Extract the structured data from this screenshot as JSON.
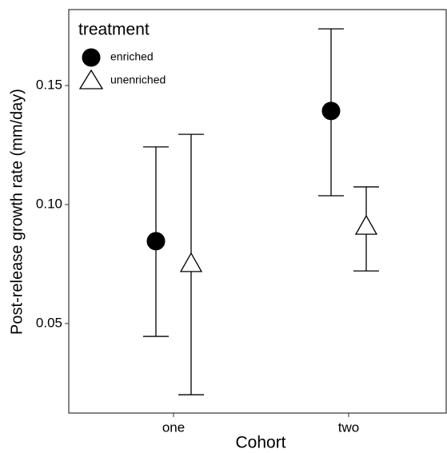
{
  "chart_data": {
    "type": "errorbar",
    "x_label": "Cohort",
    "y_label": "Post-release growth rate (mm/day)",
    "categories": [
      "one",
      "two"
    ],
    "legend_title": "treatment",
    "legend": "top-left",
    "series": [
      {
        "name": "enriched",
        "marker": "circle",
        "color": "#000000",
        "values": [
          0.0846,
          0.1393
        ],
        "lower": [
          0.0446,
          0.1037
        ],
        "upper": [
          0.1242,
          0.1738
        ]
      },
      {
        "name": "unenriched",
        "marker": "triangle",
        "color": "#ffffff",
        "values": [
          0.0752,
          0.0909
        ],
        "lower": [
          0.0201,
          0.0721
        ],
        "upper": [
          0.1295,
          0.1074
        ]
      }
    ],
    "ylim": [
      0.0124,
      0.1819
    ],
    "yticks": [
      0.05,
      {
        "value": 0.1,
        "label": "0.10"
      },
      0.15
    ],
    "grid": false
  }
}
